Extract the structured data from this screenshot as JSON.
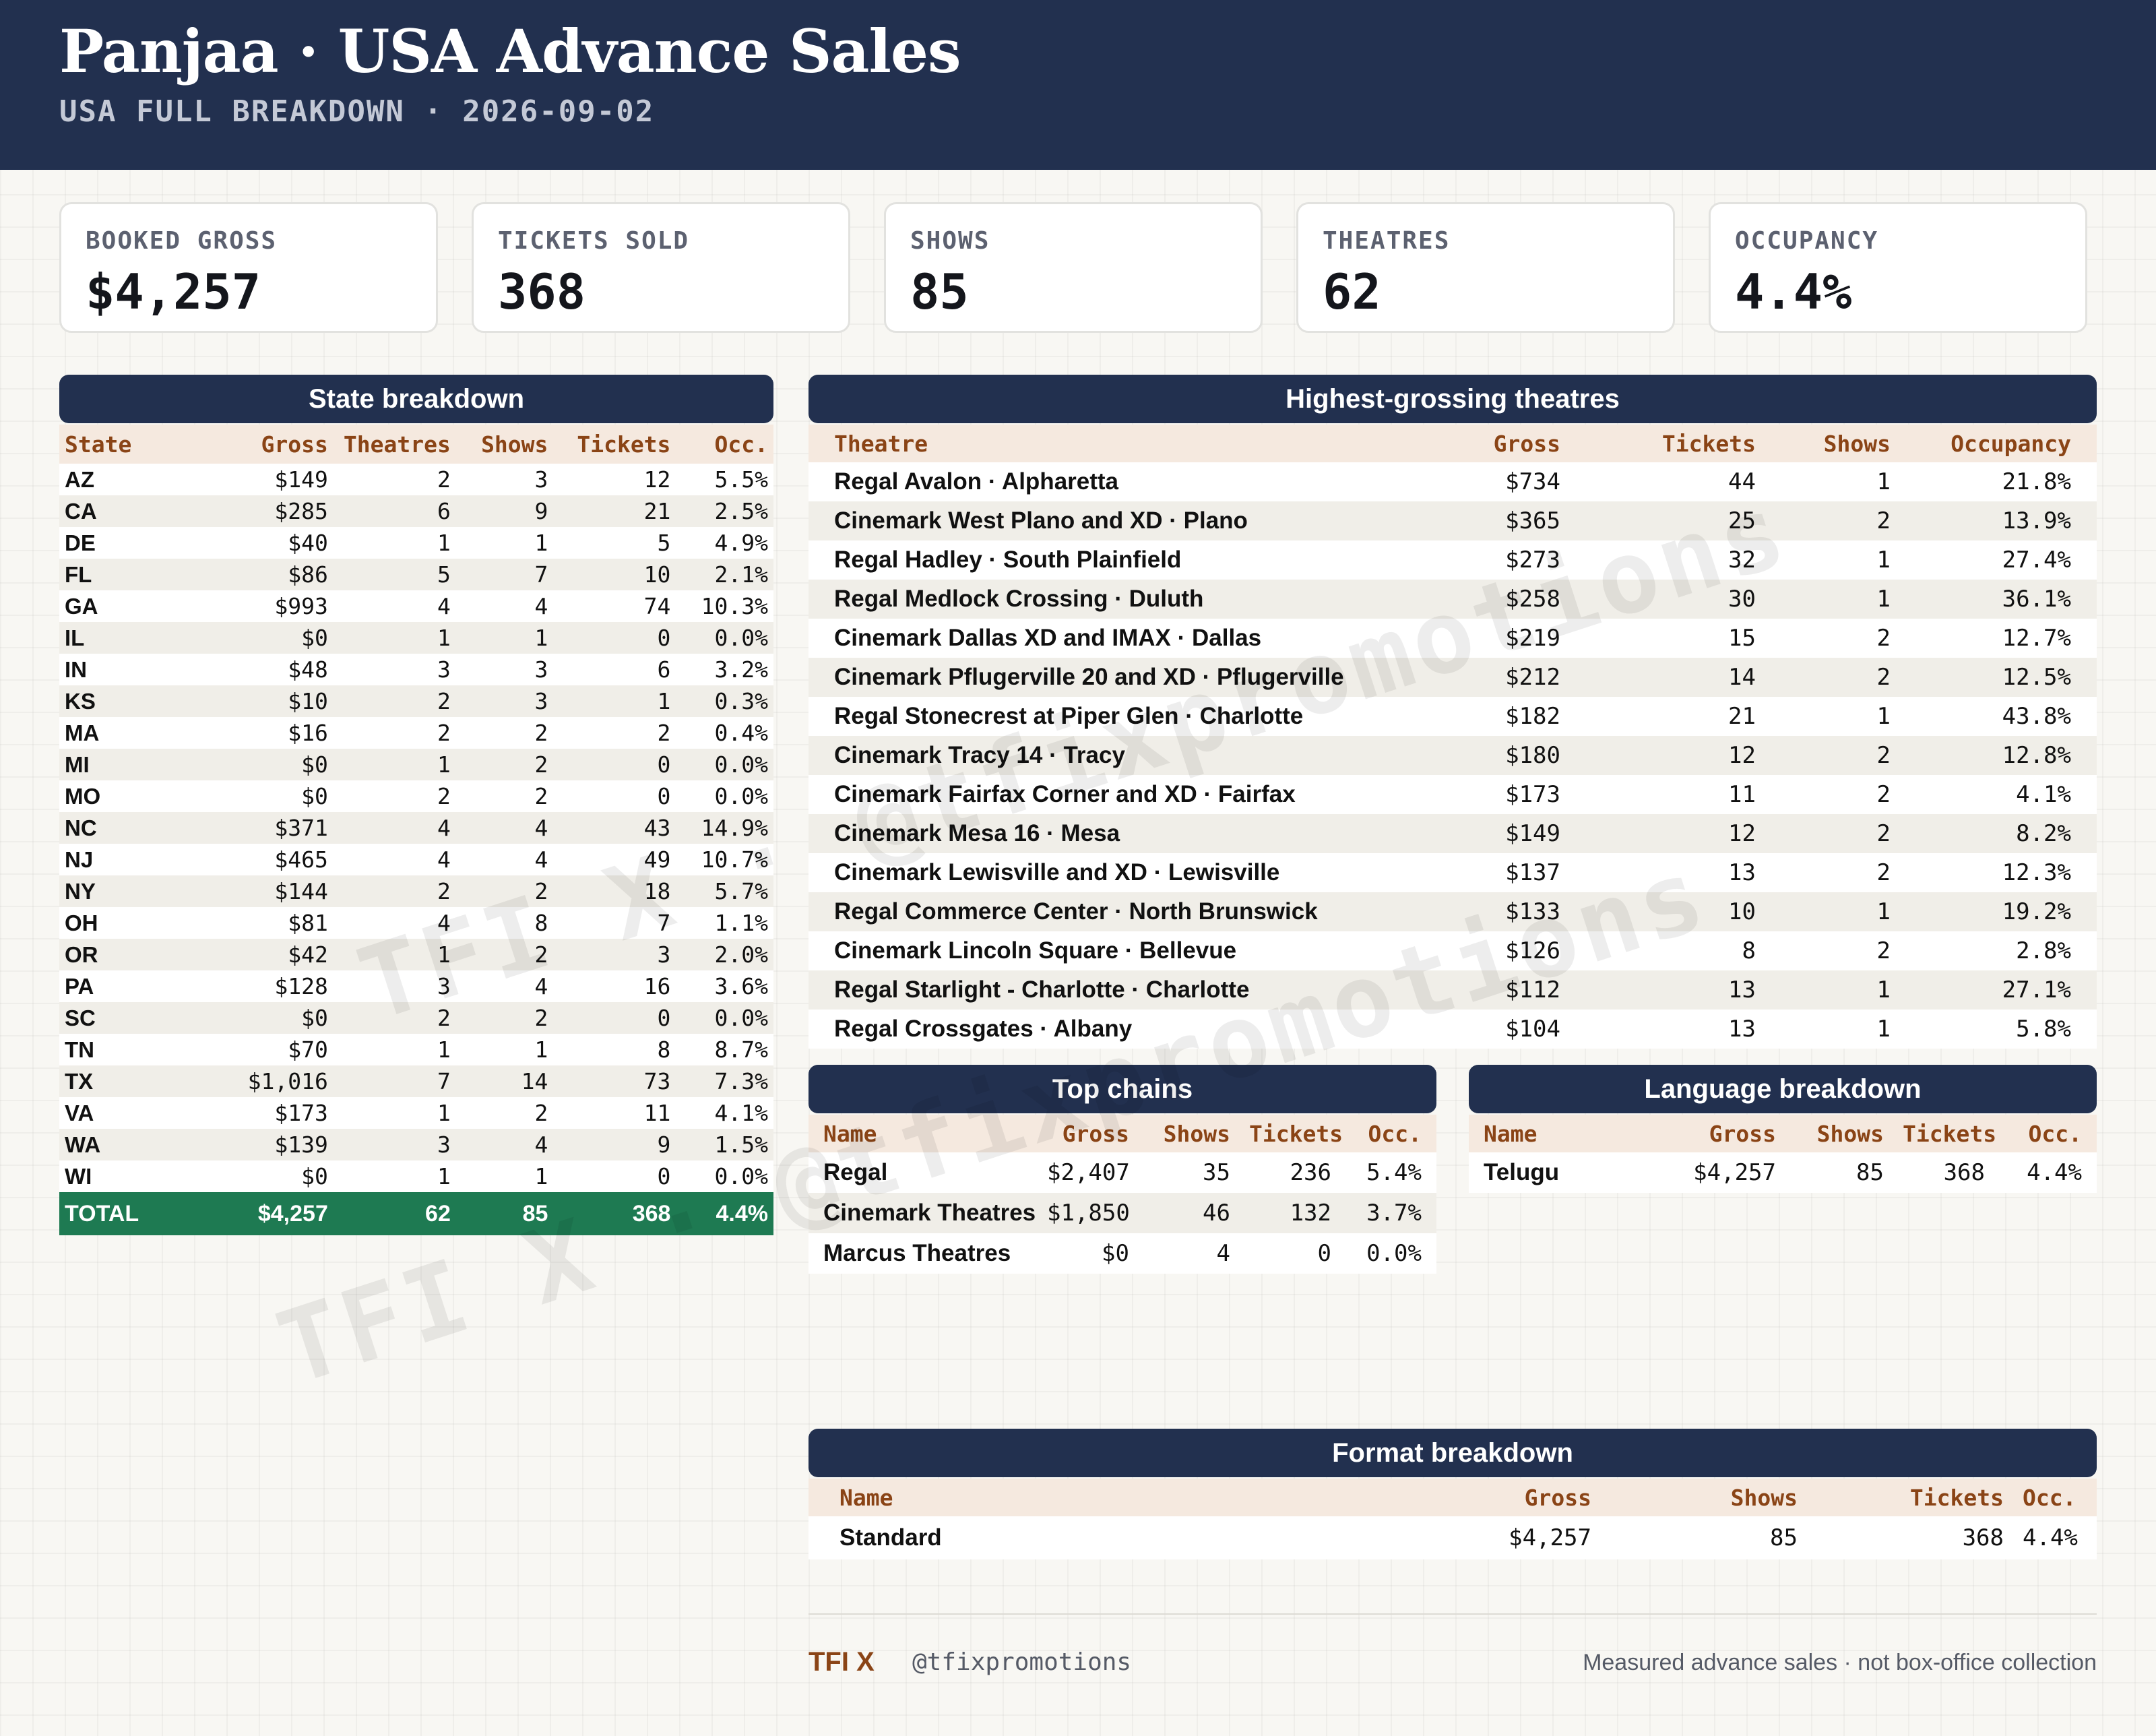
{
  "header": {
    "title": "Panjaa · USA Advance Sales",
    "subtitle": "USA FULL BREAKDOWN · 2026-09-02"
  },
  "kpis": [
    {
      "label": "BOOKED GROSS",
      "value": "$4,257"
    },
    {
      "label": "TICKETS SOLD",
      "value": "368"
    },
    {
      "label": "SHOWS",
      "value": "85"
    },
    {
      "label": "THEATRES",
      "value": "62"
    },
    {
      "label": "OCCUPANCY",
      "value": "4.4%"
    }
  ],
  "state": {
    "title": "State breakdown",
    "headers": [
      "State",
      "Gross",
      "Theatres",
      "Shows",
      "Tickets",
      "Occ."
    ],
    "rows": [
      [
        "AZ",
        "$149",
        "2",
        "3",
        "12",
        "5.5%"
      ],
      [
        "CA",
        "$285",
        "6",
        "9",
        "21",
        "2.5%"
      ],
      [
        "DE",
        "$40",
        "1",
        "1",
        "5",
        "4.9%"
      ],
      [
        "FL",
        "$86",
        "5",
        "7",
        "10",
        "2.1%"
      ],
      [
        "GA",
        "$993",
        "4",
        "4",
        "74",
        "10.3%"
      ],
      [
        "IL",
        "$0",
        "1",
        "1",
        "0",
        "0.0%"
      ],
      [
        "IN",
        "$48",
        "3",
        "3",
        "6",
        "3.2%"
      ],
      [
        "KS",
        "$10",
        "2",
        "3",
        "1",
        "0.3%"
      ],
      [
        "MA",
        "$16",
        "2",
        "2",
        "2",
        "0.4%"
      ],
      [
        "MI",
        "$0",
        "1",
        "2",
        "0",
        "0.0%"
      ],
      [
        "MO",
        "$0",
        "2",
        "2",
        "0",
        "0.0%"
      ],
      [
        "NC",
        "$371",
        "4",
        "4",
        "43",
        "14.9%"
      ],
      [
        "NJ",
        "$465",
        "4",
        "4",
        "49",
        "10.7%"
      ],
      [
        "NY",
        "$144",
        "2",
        "2",
        "18",
        "5.7%"
      ],
      [
        "OH",
        "$81",
        "4",
        "8",
        "7",
        "1.1%"
      ],
      [
        "OR",
        "$42",
        "1",
        "2",
        "3",
        "2.0%"
      ],
      [
        "PA",
        "$128",
        "3",
        "4",
        "16",
        "3.6%"
      ],
      [
        "SC",
        "$0",
        "2",
        "2",
        "0",
        "0.0%"
      ],
      [
        "TN",
        "$70",
        "1",
        "1",
        "8",
        "8.7%"
      ],
      [
        "TX",
        "$1,016",
        "7",
        "14",
        "73",
        "7.3%"
      ],
      [
        "VA",
        "$173",
        "1",
        "2",
        "11",
        "4.1%"
      ],
      [
        "WA",
        "$139",
        "3",
        "4",
        "9",
        "1.5%"
      ],
      [
        "WI",
        "$0",
        "1",
        "1",
        "0",
        "0.0%"
      ]
    ],
    "total": [
      "TOTAL",
      "$4,257",
      "62",
      "85",
      "368",
      "4.4%"
    ]
  },
  "theatres": {
    "title": "Highest-grossing theatres",
    "headers": [
      "Theatre",
      "Gross",
      "Tickets",
      "Shows",
      "Occupancy"
    ],
    "rows": [
      [
        "Regal Avalon · Alpharetta",
        "$734",
        "44",
        "1",
        "21.8%"
      ],
      [
        "Cinemark West Plano and XD · Plano",
        "$365",
        "25",
        "2",
        "13.9%"
      ],
      [
        "Regal Hadley · South Plainfield",
        "$273",
        "32",
        "1",
        "27.4%"
      ],
      [
        "Regal Medlock Crossing · Duluth",
        "$258",
        "30",
        "1",
        "36.1%"
      ],
      [
        "Cinemark Dallas XD and IMAX · Dallas",
        "$219",
        "15",
        "2",
        "12.7%"
      ],
      [
        "Cinemark Pflugerville 20 and XD · Pflugerville",
        "$212",
        "14",
        "2",
        "12.5%"
      ],
      [
        "Regal Stonecrest at Piper Glen · Charlotte",
        "$182",
        "21",
        "1",
        "43.8%"
      ],
      [
        "Cinemark Tracy 14 · Tracy",
        "$180",
        "12",
        "2",
        "12.8%"
      ],
      [
        "Cinemark Fairfax Corner and XD · Fairfax",
        "$173",
        "11",
        "2",
        "4.1%"
      ],
      [
        "Cinemark Mesa 16 · Mesa",
        "$149",
        "12",
        "2",
        "8.2%"
      ],
      [
        "Cinemark Lewisville and XD · Lewisville",
        "$137",
        "13",
        "2",
        "12.3%"
      ],
      [
        "Regal Commerce Center · North Brunswick",
        "$133",
        "10",
        "1",
        "19.2%"
      ],
      [
        "Cinemark Lincoln Square · Bellevue",
        "$126",
        "8",
        "2",
        "2.8%"
      ],
      [
        "Regal Starlight - Charlotte · Charlotte",
        "$112",
        "13",
        "1",
        "27.1%"
      ],
      [
        "Regal Crossgates · Albany",
        "$104",
        "13",
        "1",
        "5.8%"
      ]
    ]
  },
  "chains": {
    "title": "Top chains",
    "headers": [
      "Name",
      "Gross",
      "Shows",
      "Tickets",
      "Occ."
    ],
    "rows": [
      [
        "Regal",
        "$2,407",
        "35",
        "236",
        "5.4%"
      ],
      [
        "Cinemark Theatres",
        "$1,850",
        "46",
        "132",
        "3.7%"
      ],
      [
        "Marcus Theatres",
        "$0",
        "4",
        "0",
        "0.0%"
      ]
    ]
  },
  "language": {
    "title": "Language breakdown",
    "headers": [
      "Name",
      "Gross",
      "Shows",
      "Tickets",
      "Occ."
    ],
    "rows": [
      [
        "Telugu",
        "$4,257",
        "85",
        "368",
        "4.4%"
      ]
    ]
  },
  "format": {
    "title": "Format breakdown",
    "headers": [
      "Name",
      "Gross",
      "Shows",
      "Tickets",
      "Occ."
    ],
    "rows": [
      [
        "Standard",
        "$4,257",
        "85",
        "368",
        "4.4%"
      ]
    ]
  },
  "watermark": {
    "text": "TFI X · @tfixpromotions"
  },
  "footer": {
    "brand": "TFI X",
    "handle": "@tfixpromotions",
    "note": "Measured advance sales · not box-office collection"
  }
}
